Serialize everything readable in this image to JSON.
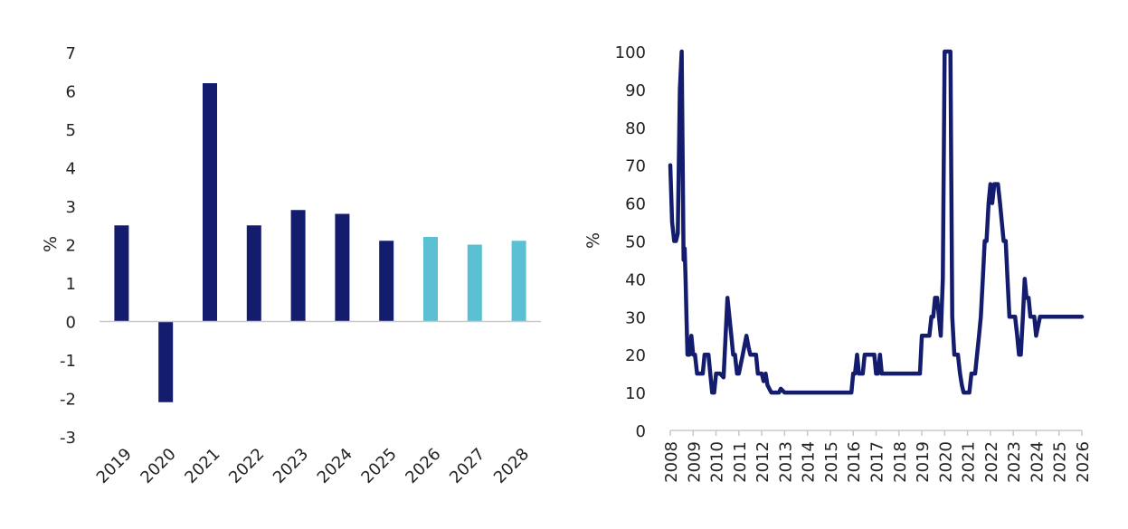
{
  "chart_data": [
    {
      "type": "bar",
      "ylabel": "%",
      "ylim": [
        -3,
        7
      ],
      "yticks": [
        7,
        6,
        5,
        4,
        3,
        2,
        1,
        0,
        -1,
        -2,
        -3
      ],
      "categories": [
        "2019",
        "2020",
        "2021",
        "2022",
        "2023",
        "2024",
        "2025",
        "2026",
        "2027",
        "2028"
      ],
      "values": [
        2.5,
        -2.1,
        6.2,
        2.5,
        2.9,
        2.8,
        2.1,
        2.2,
        2.0,
        2.1
      ],
      "bar_colors": [
        "#141c6e",
        "#141c6e",
        "#141c6e",
        "#141c6e",
        "#141c6e",
        "#141c6e",
        "#141c6e",
        "#5bc0d2",
        "#5bc0d2",
        "#5bc0d2"
      ],
      "grid": false
    },
    {
      "type": "line",
      "ylabel": "%",
      "ylim": [
        0,
        100
      ],
      "yticks": [
        100,
        90,
        80,
        70,
        60,
        50,
        40,
        30,
        20,
        10,
        0
      ],
      "xlim": [
        2008,
        2026
      ],
      "xticks": [
        "2008",
        "2009",
        "2010",
        "2011",
        "2012",
        "2013",
        "2014",
        "2015",
        "2016",
        "2017",
        "2018",
        "2019",
        "2020",
        "2021",
        "2022",
        "2023",
        "2024",
        "2025",
        "2026"
      ],
      "line_color": "#141c6e",
      "grid": false,
      "series": [
        {
          "x": [
            2008.0,
            2008.08,
            2008.17,
            2008.25,
            2008.33,
            2008.42,
            2008.5,
            2008.58,
            2008.63,
            2008.67,
            2008.71,
            2008.75,
            2008.79,
            2008.83,
            2008.92,
            2009.0,
            2009.08,
            2009.17,
            2009.25,
            2009.33,
            2009.42,
            2009.5,
            2009.58,
            2009.67,
            2009.75,
            2009.83,
            2009.92,
            2010.0,
            2010.17,
            2010.33,
            2010.5,
            2010.67,
            2010.75,
            2010.83,
            2010.92,
            2011.0,
            2011.17,
            2011.33,
            2011.42,
            2011.5,
            2011.58,
            2011.67,
            2011.75,
            2011.83,
            2011.92,
            2012.0,
            2012.08,
            2012.17,
            2012.25,
            2012.33,
            2012.42,
            2012.5,
            2012.58,
            2012.67,
            2012.75,
            2012.83,
            2013.0,
            2013.17,
            2013.33,
            2013.5,
            2013.58,
            2013.67,
            2013.75,
            2013.83,
            2014.0,
            2014.25,
            2014.5,
            2014.58,
            2014.67,
            2015.0,
            2015.5,
            2015.83,
            2015.92,
            2016.0,
            2016.08,
            2016.17,
            2016.25,
            2016.33,
            2016.42,
            2016.5,
            2016.67,
            2016.83,
            2016.92,
            2017.0,
            2017.08,
            2017.17,
            2017.25,
            2017.33,
            2017.5,
            2017.75,
            2018.0,
            2018.25,
            2018.5,
            2018.75,
            2018.92,
            2019.0,
            2019.17,
            2019.33,
            2019.42,
            2019.5,
            2019.58,
            2019.67,
            2019.75,
            2019.83,
            2019.92,
            2020.0,
            2020.08,
            2020.17,
            2020.25,
            2020.33,
            2020.42,
            2020.5,
            2020.58,
            2020.67,
            2020.75,
            2020.83,
            2020.92,
            2021.0,
            2021.08,
            2021.17,
            2021.25,
            2021.33,
            2021.5,
            2021.58,
            2021.67,
            2021.75,
            2021.83,
            2021.92,
            2022.0,
            2022.08,
            2022.17,
            2022.25,
            2022.33,
            2022.42,
            2022.5,
            2022.58,
            2022.67,
            2022.75,
            2022.83,
            2022.92,
            2023.0,
            2023.08,
            2023.17,
            2023.25,
            2023.33,
            2023.42,
            2023.5,
            2023.58,
            2023.67,
            2023.75,
            2023.83,
            2023.92,
            2024.0,
            2024.17,
            2024.33,
            2024.42,
            2024.5,
            2024.58,
            2024.67,
            2024.75,
            2024.83,
            2024.92,
            2025.0,
            2025.08,
            2025.17,
            2025.25,
            2025.33,
            2025.42,
            2025.5,
            2025.58,
            2025.67,
            2025.75,
            2025.83,
            2025.92,
            2026.0
          ],
          "y": [
            70,
            55,
            50,
            50,
            52,
            90,
            100,
            45,
            48,
            40,
            30,
            20,
            20,
            20,
            25,
            20,
            20,
            15,
            15,
            15,
            15,
            20,
            20,
            20,
            15,
            10,
            10,
            15,
            15,
            14,
            35,
            25,
            20,
            20,
            15,
            15,
            20,
            25,
            22,
            20,
            20,
            20,
            20,
            15,
            15,
            15,
            13,
            15,
            12,
            11,
            10,
            10,
            10,
            10,
            10,
            11,
            10,
            10,
            10,
            10,
            10,
            10,
            10,
            10,
            10,
            10,
            10,
            10,
            10,
            10,
            10,
            10,
            10,
            15,
            15,
            20,
            15,
            15,
            15,
            20,
            20,
            20,
            20,
            15,
            15,
            20,
            15,
            15,
            15,
            15,
            15,
            15,
            15,
            15,
            15,
            25,
            25,
            25,
            30,
            30,
            35,
            35,
            30,
            25,
            40,
            100,
            100,
            100,
            100,
            30,
            20,
            20,
            20,
            15,
            12,
            10,
            10,
            10,
            10,
            15,
            15,
            15,
            25,
            30,
            40,
            50,
            50,
            60,
            65,
            60,
            65,
            65,
            65,
            60,
            55,
            50,
            50,
            40,
            30,
            30,
            30,
            30,
            25,
            20,
            20,
            30,
            40,
            35,
            35,
            30,
            30,
            30,
            25,
            30,
            30,
            30,
            30,
            30,
            30,
            30,
            30,
            30,
            30,
            30,
            30,
            30,
            30,
            30,
            30,
            30,
            30,
            30,
            30,
            30,
            30
          ]
        }
      ]
    }
  ]
}
